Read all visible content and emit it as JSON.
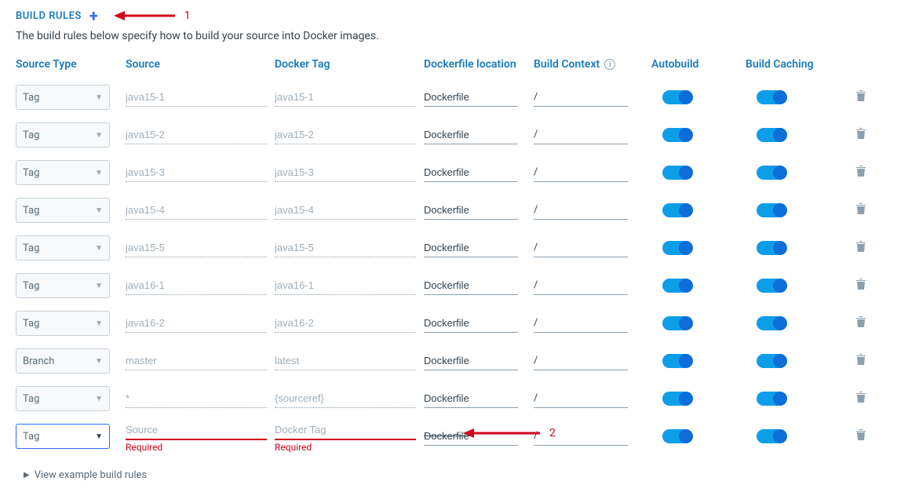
{
  "header": {
    "title": "BUILD RULES",
    "annotation_1": "1",
    "description": "The build rules below specify how to build your source into Docker images."
  },
  "columns": {
    "source_type": "Source Type",
    "source": "Source",
    "docker_tag": "Docker Tag",
    "dockerfile_location": "Dockerfile location",
    "build_context": "Build Context",
    "autobuild": "Autobuild",
    "build_caching": "Build Caching"
  },
  "rows": [
    {
      "source_type": "Tag",
      "source": "java15-1",
      "docker_tag": "java15-1",
      "loc": "Dockerfile",
      "ctx": "/"
    },
    {
      "source_type": "Tag",
      "source": "java15-2",
      "docker_tag": "java15-2",
      "loc": "Dockerfile",
      "ctx": "/"
    },
    {
      "source_type": "Tag",
      "source": "java15-3",
      "docker_tag": "java15-3",
      "loc": "Dockerfile",
      "ctx": "/"
    },
    {
      "source_type": "Tag",
      "source": "java15-4",
      "docker_tag": "java15-4",
      "loc": "Dockerfile",
      "ctx": "/"
    },
    {
      "source_type": "Tag",
      "source": "java15-5",
      "docker_tag": "java15-5",
      "loc": "Dockerfile",
      "ctx": "/"
    },
    {
      "source_type": "Tag",
      "source": "java16-1",
      "docker_tag": "java16-1",
      "loc": "Dockerfile",
      "ctx": "/"
    },
    {
      "source_type": "Tag",
      "source": "java16-2",
      "docker_tag": "java16-2",
      "loc": "Dockerfile",
      "ctx": "/"
    },
    {
      "source_type": "Branch",
      "source": "master",
      "docker_tag": "latest",
      "loc": "Dockerfile",
      "ctx": "/"
    },
    {
      "source_type": "Tag",
      "source": "*",
      "docker_tag": "{sourceref}",
      "loc": "Dockerfile",
      "ctx": "/"
    }
  ],
  "new_row": {
    "source_type": "Tag",
    "source_placeholder": "Source",
    "docker_tag_placeholder": "Docker Tag",
    "loc": "Dockerfile",
    "ctx": "/",
    "required_label": "Required",
    "annotation_2": "2"
  },
  "footer": {
    "view_examples": "View example build rules"
  },
  "colors": {
    "accent_blue": "#1a7bbd",
    "plus_blue": "#2b6cff",
    "error_red": "#d0021b",
    "toggle_track": "#0d9eea",
    "toggle_knob": "#0d6ed8",
    "muted": "#8aa0af"
  }
}
